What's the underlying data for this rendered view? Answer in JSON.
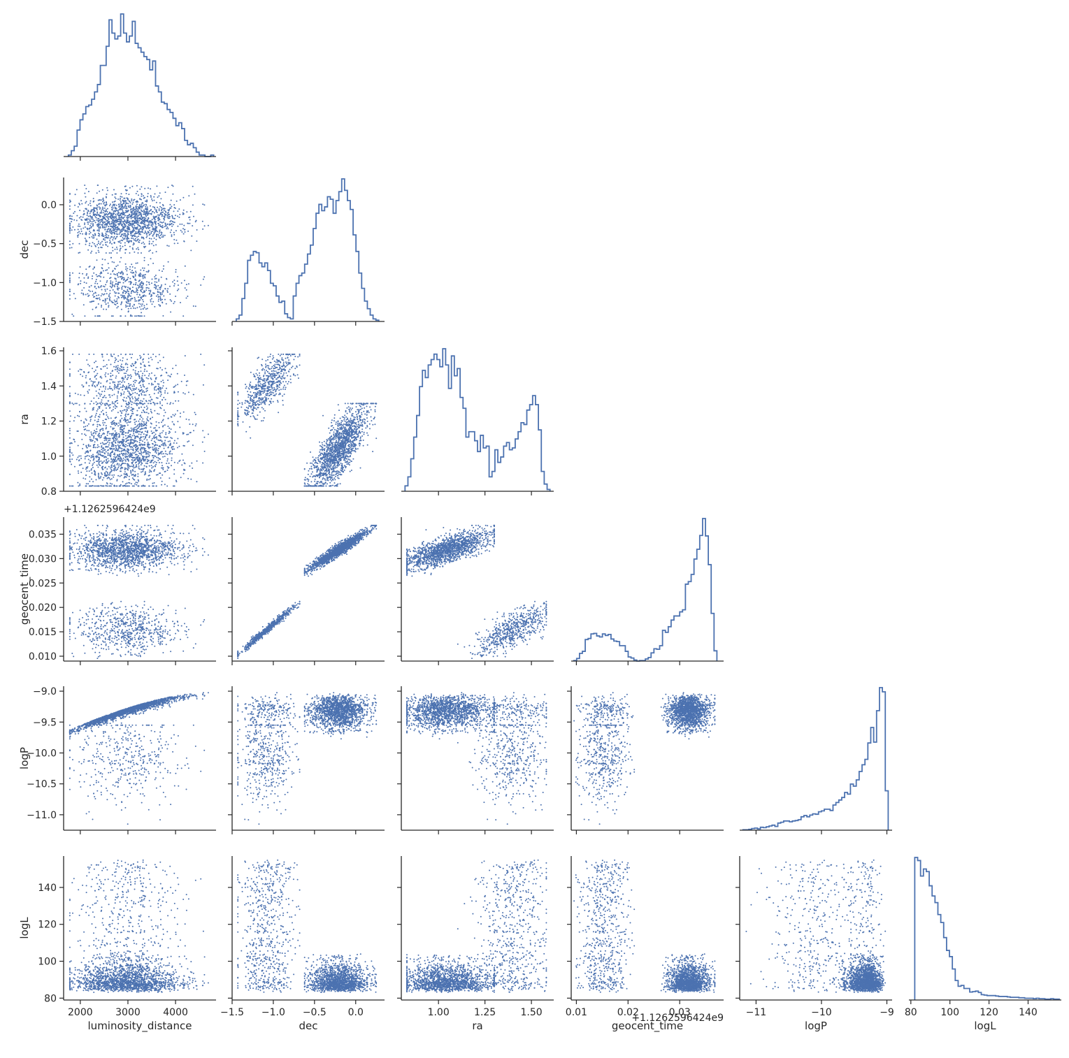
{
  "chart_data": {
    "type": "scatter",
    "title": "",
    "grid": false,
    "legend": "none",
    "color": "#4c72b0",
    "variables": [
      "luminosity_distance",
      "dec",
      "ra",
      "geocent_time",
      "logP",
      "logL"
    ],
    "axis_labels": {
      "luminosity_distance": "luminosity_distance",
      "dec": "dec",
      "ra": "ra",
      "geocent_time": "geocent_time",
      "logP": "logP",
      "logL": "logL"
    },
    "ranges": {
      "luminosity_distance": [
        1650,
        4850
      ],
      "dec": [
        -1.5,
        0.35
      ],
      "ra": [
        0.8,
        1.62
      ],
      "geocent_time": [
        0.009,
        0.0385
      ],
      "logP": [
        -11.25,
        -8.92
      ],
      "logL": [
        79,
        157
      ]
    },
    "ticks": {
      "luminosity_distance": {
        "values": [
          2000,
          3000,
          4000
        ],
        "labels": [
          "2000",
          "3000",
          "4000"
        ]
      },
      "dec": {
        "values": [
          -1.5,
          -1.0,
          -0.5,
          0.0
        ],
        "labels": [
          "−1.5",
          "−1.0",
          "−0.5",
          "0.0"
        ]
      },
      "ra": {
        "values": [
          0.8,
          1.0,
          1.2,
          1.4,
          1.6
        ],
        "labels": [
          "0.8",
          "1.0",
          "1.2",
          "1.4",
          "1.6"
        ]
      },
      "ra_x": {
        "values": [
          1.0,
          1.25,
          1.5
        ],
        "labels": [
          "1.00",
          "1.25",
          "1.50"
        ]
      },
      "geocent_time": {
        "values": [
          0.01,
          0.015,
          0.02,
          0.025,
          0.03,
          0.035
        ],
        "labels": [
          "0.010",
          "0.015",
          "0.020",
          "0.025",
          "0.030",
          "0.035"
        ]
      },
      "geocent_time_x": {
        "values": [
          0.01,
          0.02,
          0.03
        ],
        "labels": [
          "0.01",
          "0.02",
          "0.03"
        ]
      },
      "logP": {
        "values": [
          -11.0,
          -10.5,
          -10.0,
          -9.5,
          -9.0
        ],
        "labels": [
          "−11.0",
          "−10.5",
          "−10.0",
          "−9.5",
          "−9.0"
        ]
      },
      "logP_x": {
        "values": [
          -11,
          -10,
          -9
        ],
        "labels": [
          "−11",
          "−10",
          "−9"
        ]
      },
      "logL": {
        "values": [
          80,
          100,
          120,
          140
        ],
        "labels": [
          "80",
          "100",
          "120",
          "140"
        ]
      }
    },
    "offset_text": "+1.1262596424e9",
    "histograms": {
      "luminosity_distance": {
        "range": [
          1750,
          4800
        ],
        "bins": 50,
        "counts": [
          1,
          4,
          7,
          18,
          25,
          29,
          34,
          35,
          39,
          44,
          49,
          62,
          62,
          75,
          93,
          84,
          80,
          82,
          97,
          84,
          78,
          82,
          92,
          77,
          74,
          71,
          68,
          66,
          59,
          65,
          48,
          44,
          37,
          36,
          32,
          30,
          26,
          21,
          23,
          19,
          11,
          8,
          9,
          6,
          3,
          1,
          1,
          0,
          0,
          1
        ]
      },
      "dec": {
        "range": [
          -1.45,
          0.28
        ],
        "bins": 50,
        "counts": [
          2,
          5,
          18,
          30,
          48,
          52,
          55,
          54,
          46,
          43,
          46,
          40,
          30,
          28,
          20,
          15,
          16,
          6,
          3,
          2,
          20,
          30,
          36,
          38,
          45,
          53,
          60,
          73,
          85,
          92,
          87,
          90,
          98,
          96,
          85,
          95,
          102,
          112,
          103,
          95,
          88,
          68,
          55,
          38,
          26,
          16,
          10,
          5,
          2,
          1
        ]
      },
      "ra": {
        "range": [
          0.82,
          1.6
        ],
        "bins": 50,
        "counts": [
          3,
          8,
          18,
          30,
          42,
          58,
          67,
          63,
          70,
          73,
          76,
          73,
          69,
          79,
          70,
          57,
          75,
          64,
          68,
          52,
          46,
          30,
          33,
          33,
          28,
          22,
          31,
          24,
          25,
          8,
          11,
          23,
          16,
          19,
          25,
          27,
          23,
          24,
          29,
          33,
          38,
          37,
          45,
          48,
          53,
          48,
          34,
          11,
          4,
          1
        ]
      },
      "geocent_time": {
        "range": [
          0.0095,
          0.0372
        ],
        "bins": 50,
        "counts": [
          1,
          5,
          15,
          19,
          42,
          44,
          53,
          54,
          49,
          47,
          53,
          50,
          52,
          43,
          39,
          38,
          30,
          30,
          19,
          8,
          6,
          2,
          0,
          1,
          1,
          4,
          7,
          16,
          24,
          23,
          30,
          60,
          56,
          67,
          80,
          88,
          88,
          96,
          100,
          150,
          155,
          169,
          199,
          218,
          245,
          278,
          244,
          188,
          93,
          20
        ]
      },
      "logP": {
        "range": [
          -11.2,
          -8.98
        ],
        "bins": 50,
        "counts": [
          1,
          1,
          2,
          4,
          5,
          3,
          7,
          6,
          8,
          10,
          12,
          9,
          17,
          19,
          22,
          22,
          20,
          22,
          23,
          25,
          32,
          35,
          32,
          36,
          39,
          38,
          44,
          46,
          50,
          50,
          47,
          60,
          66,
          72,
          78,
          90,
          86,
          110,
          105,
          120,
          140,
          156,
          169,
          208,
          245,
          210,
          285,
          340,
          330,
          94
        ]
      },
      "logL": {
        "range": [
          82,
          156
        ],
        "bins": 50,
        "counts": [
          322,
          315,
          280,
          296,
          290,
          258,
          235,
          220,
          193,
          175,
          141,
          112,
          98,
          70,
          44,
          31,
          33,
          26,
          26,
          18,
          19,
          20,
          17,
          12,
          11,
          10,
          10,
          10,
          9,
          8,
          8,
          8,
          7,
          6,
          6,
          6,
          5,
          5,
          4,
          4,
          4,
          3,
          4,
          3,
          3,
          2,
          2,
          3,
          2,
          2
        ]
      }
    }
  }
}
